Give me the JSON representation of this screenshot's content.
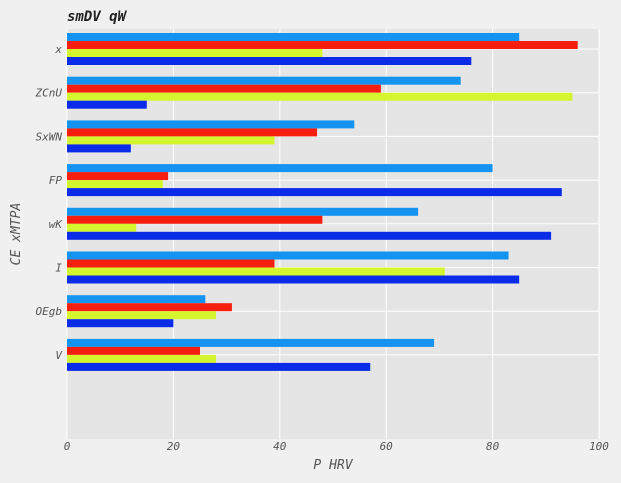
{
  "chart_data": {
    "type": "bar",
    "orientation": "horizontal",
    "title": "smDV qW",
    "xlabel": "P HRV",
    "ylabel": "CE xMTPA",
    "categories": [
      "x",
      "ZCnU",
      "SxWN",
      "FP",
      "wK",
      "I",
      "OEgb",
      "V"
    ],
    "xlim": [
      0,
      100
    ],
    "x_ticks": [
      "0",
      "20",
      "40",
      "60",
      "80",
      "100"
    ],
    "grid": true,
    "series": [
      {
        "color": "#1493f0",
        "values": [
          85,
          74,
          54,
          80,
          66,
          83,
          26,
          69
        ]
      },
      {
        "color": "#f51e0f",
        "values": [
          96,
          59,
          47,
          19,
          48,
          39,
          31,
          25
        ]
      },
      {
        "color": "#d5f52e",
        "values": [
          48,
          95,
          39,
          18,
          13,
          71,
          28,
          28
        ]
      },
      {
        "color": "#0a2be8",
        "values": [
          76,
          15,
          12,
          93,
          91,
          85,
          20,
          57
        ]
      }
    ]
  }
}
